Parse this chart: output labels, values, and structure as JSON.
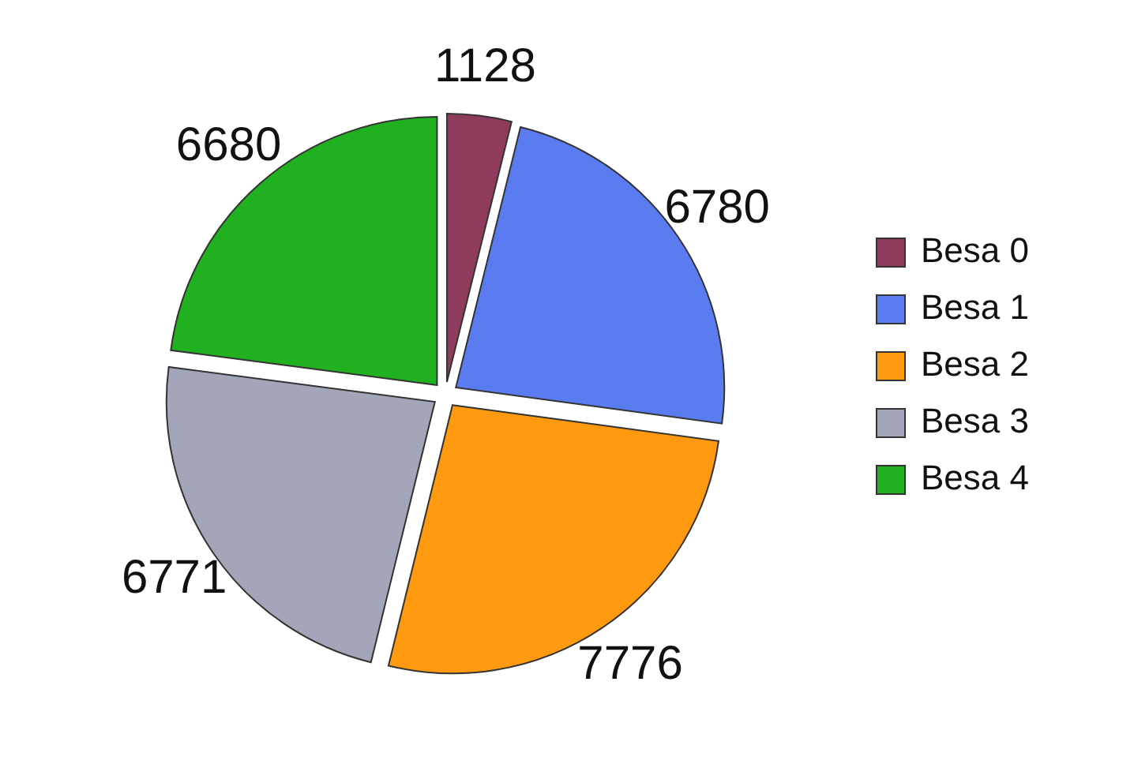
{
  "chart_data": {
    "type": "pie",
    "categories": [
      "Besa 0",
      "Besa 1",
      "Besa 2",
      "Besa 3",
      "Besa 4"
    ],
    "values": [
      1128,
      6780,
      7776,
      6771,
      6680
    ],
    "colors": [
      "#8e3b5e",
      "#5a7cf0",
      "#ff9a10",
      "#a2a6b8",
      "#20b020"
    ],
    "data_labels": true,
    "legend": "right"
  }
}
